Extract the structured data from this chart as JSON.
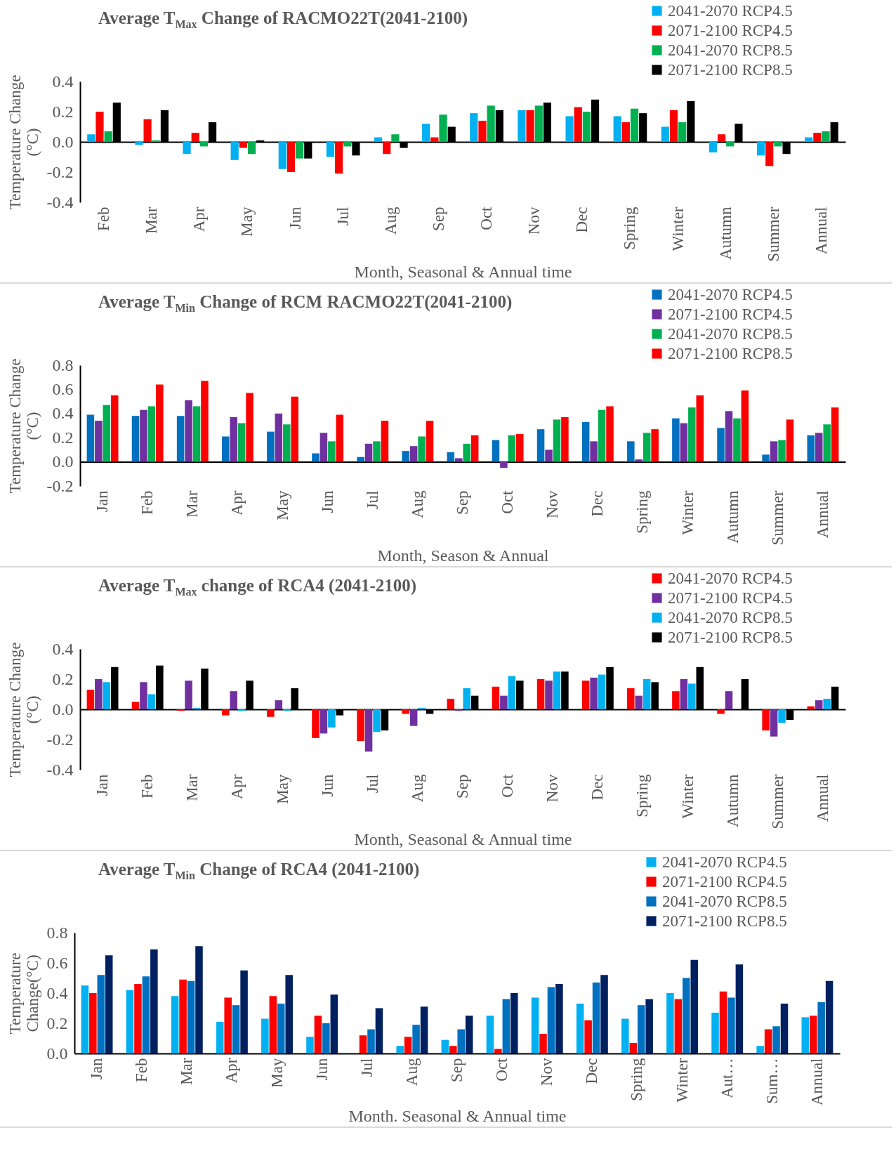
{
  "chart_data": [
    {
      "type": "bar",
      "title": "Average T$_{Max}$ Change of RACMO22T(2041-2100)",
      "xlabel": "Month, Seasonal & Annual time",
      "ylabel": "Temperature Change (°C)",
      "categories": [
        "Feb",
        "Mar",
        "Apr",
        "May",
        "Jun",
        "Jul",
        "Aug",
        "Sep",
        "Oct",
        "Nov",
        "Dec",
        "Spring",
        "Winter",
        "Autumn",
        "Summer",
        "Annual"
      ],
      "ylim": [
        -0.4,
        0.4
      ],
      "yticks": [
        {
          "value": -0.4,
          "label": "-0.4"
        },
        {
          "value": -0.2,
          "label": "-0.2"
        },
        {
          "value": 0,
          "label": "0.0"
        },
        {
          "value": 0.2,
          "label": "0.2"
        },
        {
          "value": 0.4,
          "label": "0.4"
        }
      ],
      "legend": "top right",
      "series": [
        {
          "name": "2041-2070 RCP4.5",
          "color": "#00b0f0",
          "values": [
            0.05,
            -0.02,
            -0.08,
            -0.12,
            -0.18,
            -0.1,
            0.03,
            0.12,
            0.19,
            0.21,
            0.17,
            0.17,
            0.1,
            -0.07,
            -0.09,
            0.03
          ]
        },
        {
          "name": "2071-2100 RCP4.5",
          "color": "#ff0000",
          "values": [
            0.2,
            0.15,
            0.06,
            -0.04,
            -0.2,
            -0.21,
            -0.08,
            0.03,
            0.14,
            0.21,
            0.23,
            0.13,
            0.21,
            0.05,
            -0.16,
            0.06
          ]
        },
        {
          "name": "2041-2070 RCP8.5",
          "color": "#00b050",
          "values": [
            0.07,
            0.01,
            -0.03,
            -0.08,
            -0.11,
            -0.03,
            0.05,
            0.18,
            0.24,
            0.24,
            0.2,
            0.22,
            0.13,
            -0.03,
            -0.03,
            0.07
          ]
        },
        {
          "name": "2071-2100 RCP8.5",
          "color": "#000000",
          "values": [
            0.26,
            0.21,
            0.13,
            0.01,
            -0.11,
            -0.09,
            -0.04,
            0.1,
            0.21,
            0.26,
            0.28,
            0.19,
            0.27,
            0.12,
            -0.08,
            0.13
          ]
        }
      ]
    },
    {
      "type": "bar",
      "title": "Average T$_{Min}$ Change of RCM RACMO22T(2041-2100)",
      "xlabel": "Month, Season & Annual",
      "ylabel": "Temperature Change (°C)",
      "categories": [
        "Jan",
        "Feb",
        "Mar",
        "Apr",
        "May",
        "Jun",
        "Jul",
        "Aug",
        "Sep",
        "Oct",
        "Nov",
        "Dec",
        "Spring",
        "Winter",
        "Autumn",
        "Summer",
        "Annual"
      ],
      "ylim": [
        -0.2,
        0.8
      ],
      "yticks": [
        {
          "value": -0.2,
          "label": "-0.2"
        },
        {
          "value": 0,
          "label": "0.0"
        },
        {
          "value": 0.2,
          "label": "0.2"
        },
        {
          "value": 0.4,
          "label": "0.4"
        },
        {
          "value": 0.6,
          "label": "0.6"
        },
        {
          "value": 0.8,
          "label": "0.8"
        }
      ],
      "grid": false,
      "legend": "top right",
      "series": [
        {
          "name": "2041-2070 RCP4.5",
          "color": "#0070c0",
          "values": [
            0.39,
            0.38,
            0.38,
            0.21,
            0.25,
            0.07,
            0.04,
            0.09,
            0.08,
            0.18,
            0.27,
            0.33,
            0.17,
            0.36,
            0.28,
            0.06,
            0.22
          ]
        },
        {
          "name": "2071-2100 RCP4.5",
          "color": "#7030a0",
          "values": [
            0.34,
            0.43,
            0.51,
            0.37,
            0.4,
            0.24,
            0.15,
            0.13,
            0.03,
            -0.05,
            0.1,
            0.17,
            0.02,
            0.32,
            0.42,
            0.17,
            0.24
          ]
        },
        {
          "name": "2041-2070 RCP8.5",
          "color": "#00b050",
          "values": [
            0.47,
            0.46,
            0.46,
            0.32,
            0.31,
            0.17,
            0.17,
            0.21,
            0.15,
            0.22,
            0.35,
            0.43,
            0.24,
            0.45,
            0.36,
            0.18,
            0.31
          ]
        },
        {
          "name": "2071-2100 RCP8.5",
          "color": "#ff0000",
          "values": [
            0.55,
            0.64,
            0.67,
            0.57,
            0.54,
            0.39,
            0.34,
            0.34,
            0.22,
            0.23,
            0.37,
            0.46,
            0.27,
            0.55,
            0.59,
            0.35,
            0.45
          ]
        }
      ]
    },
    {
      "type": "bar",
      "title": "Average T$_{Max}$ change of RCA4 (2041-2100)",
      "xlabel": "Month, Seasonal & Annual time",
      "ylabel": "Temperature Change (°C)",
      "categories": [
        "Jan",
        "Feb",
        "Mar",
        "Apr",
        "May",
        "Jun",
        "Jul",
        "Aug",
        "Sep",
        "Oct",
        "Nov",
        "Dec",
        "Spring",
        "Winter",
        "Autumn",
        "Summer",
        "Annual"
      ],
      "ylim": [
        -0.4,
        0.4
      ],
      "yticks": [
        {
          "value": -0.4,
          "label": "-0.4"
        },
        {
          "value": -0.2,
          "label": "-0.2"
        },
        {
          "value": 0,
          "label": "0.0"
        },
        {
          "value": 0.2,
          "label": "0.2"
        },
        {
          "value": 0.4,
          "label": "0.4"
        }
      ],
      "legend": "top right",
      "series": [
        {
          "name": "2041-2070 RCP4.5",
          "color": "#ff0000",
          "values": [
            0.13,
            0.05,
            -0.01,
            -0.04,
            -0.05,
            -0.19,
            -0.21,
            -0.03,
            0.07,
            0.15,
            0.2,
            0.19,
            0.14,
            0.12,
            -0.03,
            -0.14,
            0.02
          ]
        },
        {
          "name": "2071-2100 RCP4.5",
          "color": "#7030a0",
          "values": [
            0.2,
            0.18,
            0.19,
            0.12,
            0.06,
            -0.16,
            -0.28,
            -0.11,
            -0.01,
            0.09,
            0.19,
            0.21,
            0.09,
            0.2,
            0.12,
            -0.18,
            0.06
          ]
        },
        {
          "name": "2041-2070 RCP8.5",
          "color": "#00b0f0",
          "values": [
            0.18,
            0.1,
            0.01,
            -0.01,
            -0.01,
            -0.12,
            -0.15,
            0.01,
            0.14,
            0.22,
            0.25,
            0.23,
            0.2,
            0.17,
            0.0,
            -0.09,
            0.07
          ]
        },
        {
          "name": "2071-2100 RCP8.5",
          "color": "#000000",
          "values": [
            0.28,
            0.29,
            0.27,
            0.19,
            0.14,
            -0.04,
            -0.14,
            -0.03,
            0.09,
            0.19,
            0.25,
            0.28,
            0.18,
            0.28,
            0.2,
            -0.07,
            0.15
          ]
        }
      ]
    },
    {
      "type": "bar",
      "title": "Average T$_{Min}$ Change of RCA4 (2041-2100)",
      "xlabel": "Month. Seasonal & Annual time",
      "ylabel": "Temperature Change(°C)",
      "categories": [
        "Jan",
        "Feb",
        "Mar",
        "Apr",
        "May",
        "Jun",
        "Jul",
        "Aug",
        "Sep",
        "Oct",
        "Nov",
        "Dec",
        "Spring",
        "Winter",
        "Aut…",
        "Sum…",
        "Annual"
      ],
      "ylim": [
        0,
        0.8
      ],
      "yticks": [
        {
          "value": 0,
          "label": "0.0"
        },
        {
          "value": 0.2,
          "label": "0.2"
        },
        {
          "value": 0.4,
          "label": "0.4"
        },
        {
          "value": 0.6,
          "label": "0.6"
        },
        {
          "value": 0.8,
          "label": "0.8"
        }
      ],
      "grid": false,
      "legend": "top right",
      "series": [
        {
          "name": "2041-2070 RCP4.5",
          "color": "#00b0f0",
          "values": [
            0.45,
            0.42,
            0.38,
            0.21,
            0.23,
            0.11,
            null,
            0.05,
            0.09,
            0.25,
            0.37,
            0.33,
            0.23,
            0.4,
            0.27,
            0.05,
            0.24
          ]
        },
        {
          "name": "2071-2100 RCP4.5",
          "color": "#ff0000",
          "values": [
            0.4,
            0.46,
            0.49,
            0.37,
            0.38,
            0.25,
            0.12,
            0.11,
            0.05,
            0.03,
            0.13,
            0.22,
            0.07,
            0.36,
            0.41,
            0.16,
            0.25
          ]
        },
        {
          "name": "2041-2070 RCP8.5",
          "color": "#0070c0",
          "values": [
            0.52,
            0.51,
            0.48,
            0.32,
            0.33,
            0.2,
            0.16,
            0.19,
            0.16,
            0.36,
            0.44,
            0.47,
            0.32,
            0.5,
            0.37,
            0.18,
            0.34
          ]
        },
        {
          "name": "2071-2100 RCP8.5",
          "color": "#002060",
          "values": [
            0.65,
            0.69,
            0.71,
            0.55,
            0.52,
            0.39,
            0.3,
            0.31,
            0.25,
            0.4,
            0.46,
            0.52,
            0.36,
            0.62,
            0.59,
            0.33,
            0.48
          ]
        }
      ]
    }
  ]
}
